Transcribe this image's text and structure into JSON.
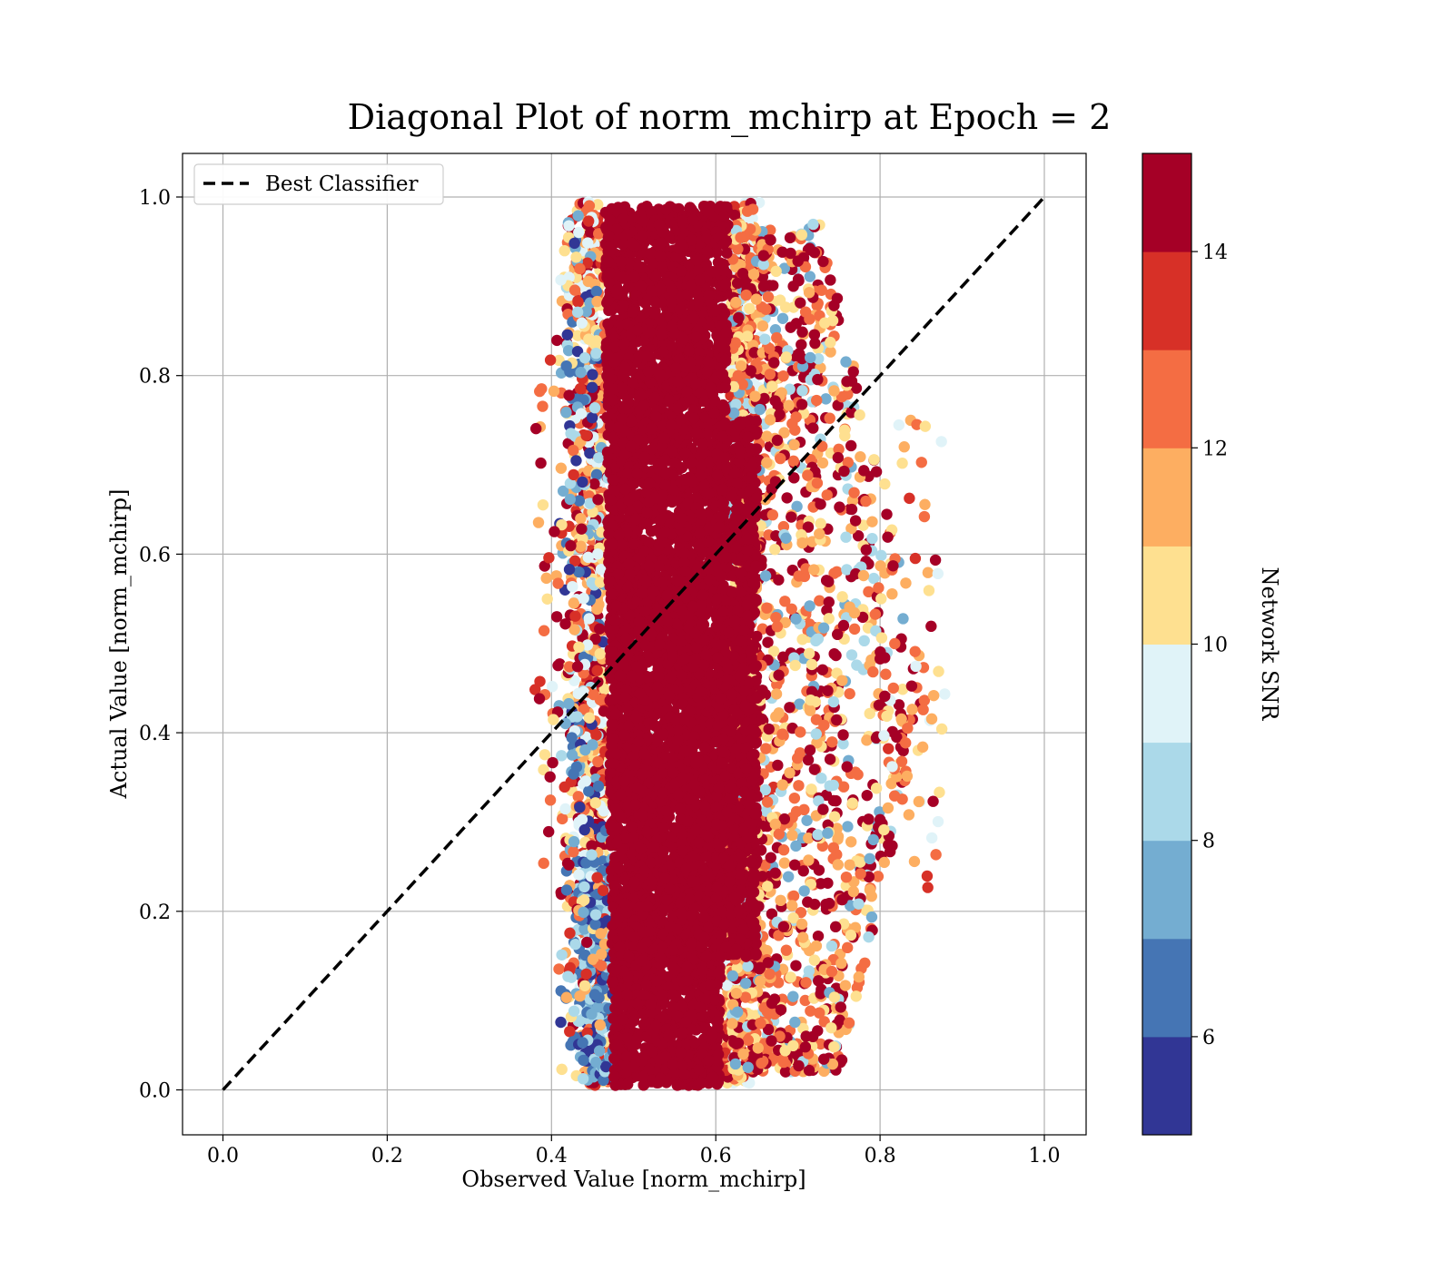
{
  "chart_data": {
    "type": "scatter",
    "title": "Diagonal Plot of norm_mchirp at Epoch = 2",
    "xlabel": "Observed Value [norm_mchirp]",
    "ylabel": "Actual Value [norm_mchirp]",
    "xlim": [
      -0.05,
      1.05
    ],
    "ylim": [
      -0.05,
      1.05
    ],
    "x_ticks": [
      "0.0",
      "0.2",
      "0.4",
      "0.6",
      "0.8",
      "1.0"
    ],
    "y_ticks": [
      "0.0",
      "0.2",
      "0.4",
      "0.6",
      "0.8",
      "1.0"
    ],
    "grid": true,
    "legend": {
      "location": "upper-left",
      "entries": [
        "Best Classifier"
      ]
    },
    "reference_line": {
      "name": "Best Classifier",
      "style": "dashed",
      "color": "#000000",
      "x": [
        0,
        1
      ],
      "y": [
        0,
        1
      ]
    },
    "colorbar": {
      "label": "Network SNR",
      "range": [
        5,
        15
      ],
      "ticks": [
        "6",
        "8",
        "10",
        "12",
        "14"
      ],
      "colors": [
        "#313695",
        "#4575b4",
        "#74add1",
        "#abd9e9",
        "#e0f3f8",
        "#fee090",
        "#fdae61",
        "#f46d43",
        "#d73027",
        "#a50026"
      ]
    },
    "scatter_summary": {
      "dense_core": {
        "x_center": 0.54,
        "x_halfwidth_top": 0.075,
        "x_halfwidth_bottom": 0.065,
        "y_range": [
          0.0,
          0.99
        ],
        "dominant_snr": 15
      },
      "tail_lower": {
        "x_range": [
          0.43,
          0.48
        ],
        "y_range": [
          0.0,
          0.25
        ],
        "snr_range": [
          5,
          9
        ]
      },
      "scattered_right": {
        "x_range": [
          0.62,
          0.88
        ],
        "y_range": [
          0.0,
          0.98
        ],
        "snr_range": [
          8,
          15
        ]
      },
      "scattered_left": {
        "x_range": [
          0.38,
          0.47
        ],
        "y_range": [
          0.05,
          0.98
        ],
        "snr_range": [
          5,
          15
        ]
      }
    }
  }
}
